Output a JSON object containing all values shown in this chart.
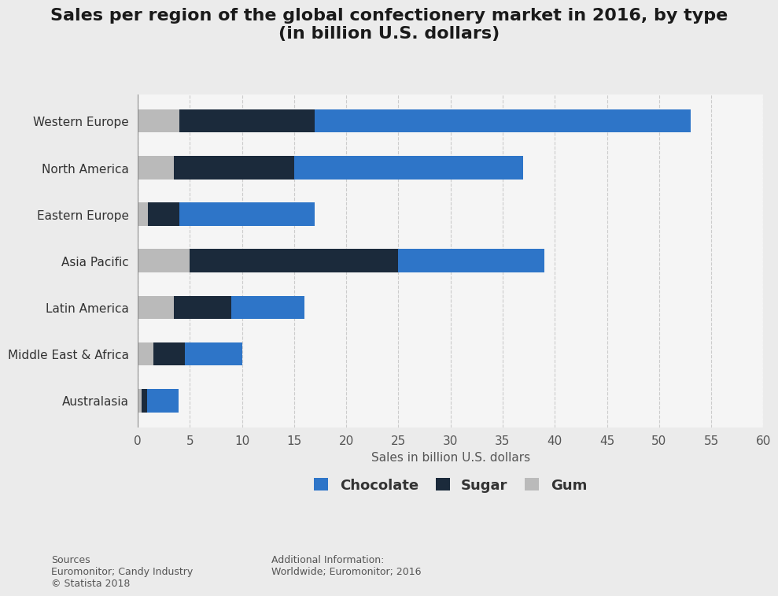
{
  "title": "Sales per region of the global confectionery market in 2016, by type\n(in billion U.S. dollars)",
  "regions": [
    "Australasia",
    "Middle East & Africa",
    "Latin America",
    "Asia Pacific",
    "Eastern Europe",
    "North America",
    "Western Europe"
  ],
  "chocolate": [
    3.0,
    5.5,
    7.0,
    14.0,
    13.0,
    22.0,
    36.0
  ],
  "sugar": [
    0.5,
    3.0,
    5.5,
    20.0,
    3.0,
    11.5,
    13.0
  ],
  "gum": [
    0.4,
    1.5,
    3.5,
    5.0,
    1.0,
    3.5,
    4.0
  ],
  "chocolate_color": "#2E75C8",
  "sugar_color": "#1B2A3B",
  "gum_color": "#BABABA",
  "xlabel": "Sales in billion U.S. dollars",
  "xlim": [
    0,
    60
  ],
  "xticks": [
    0,
    5,
    10,
    15,
    20,
    25,
    30,
    35,
    40,
    45,
    50,
    55,
    60
  ],
  "background_color": "#EBEBEB",
  "plot_bg_color": "#F5F5F5",
  "title_fontsize": 16,
  "label_fontsize": 11,
  "tick_fontsize": 11,
  "legend_labels": [
    "Chocolate",
    "Sugar",
    "Gum"
  ],
  "sources_text": "Sources\nEuromonitor; Candy Industry\n© Statista 2018",
  "additional_text": "Additional Information:\nWorldwide; Euromonitor; 2016"
}
